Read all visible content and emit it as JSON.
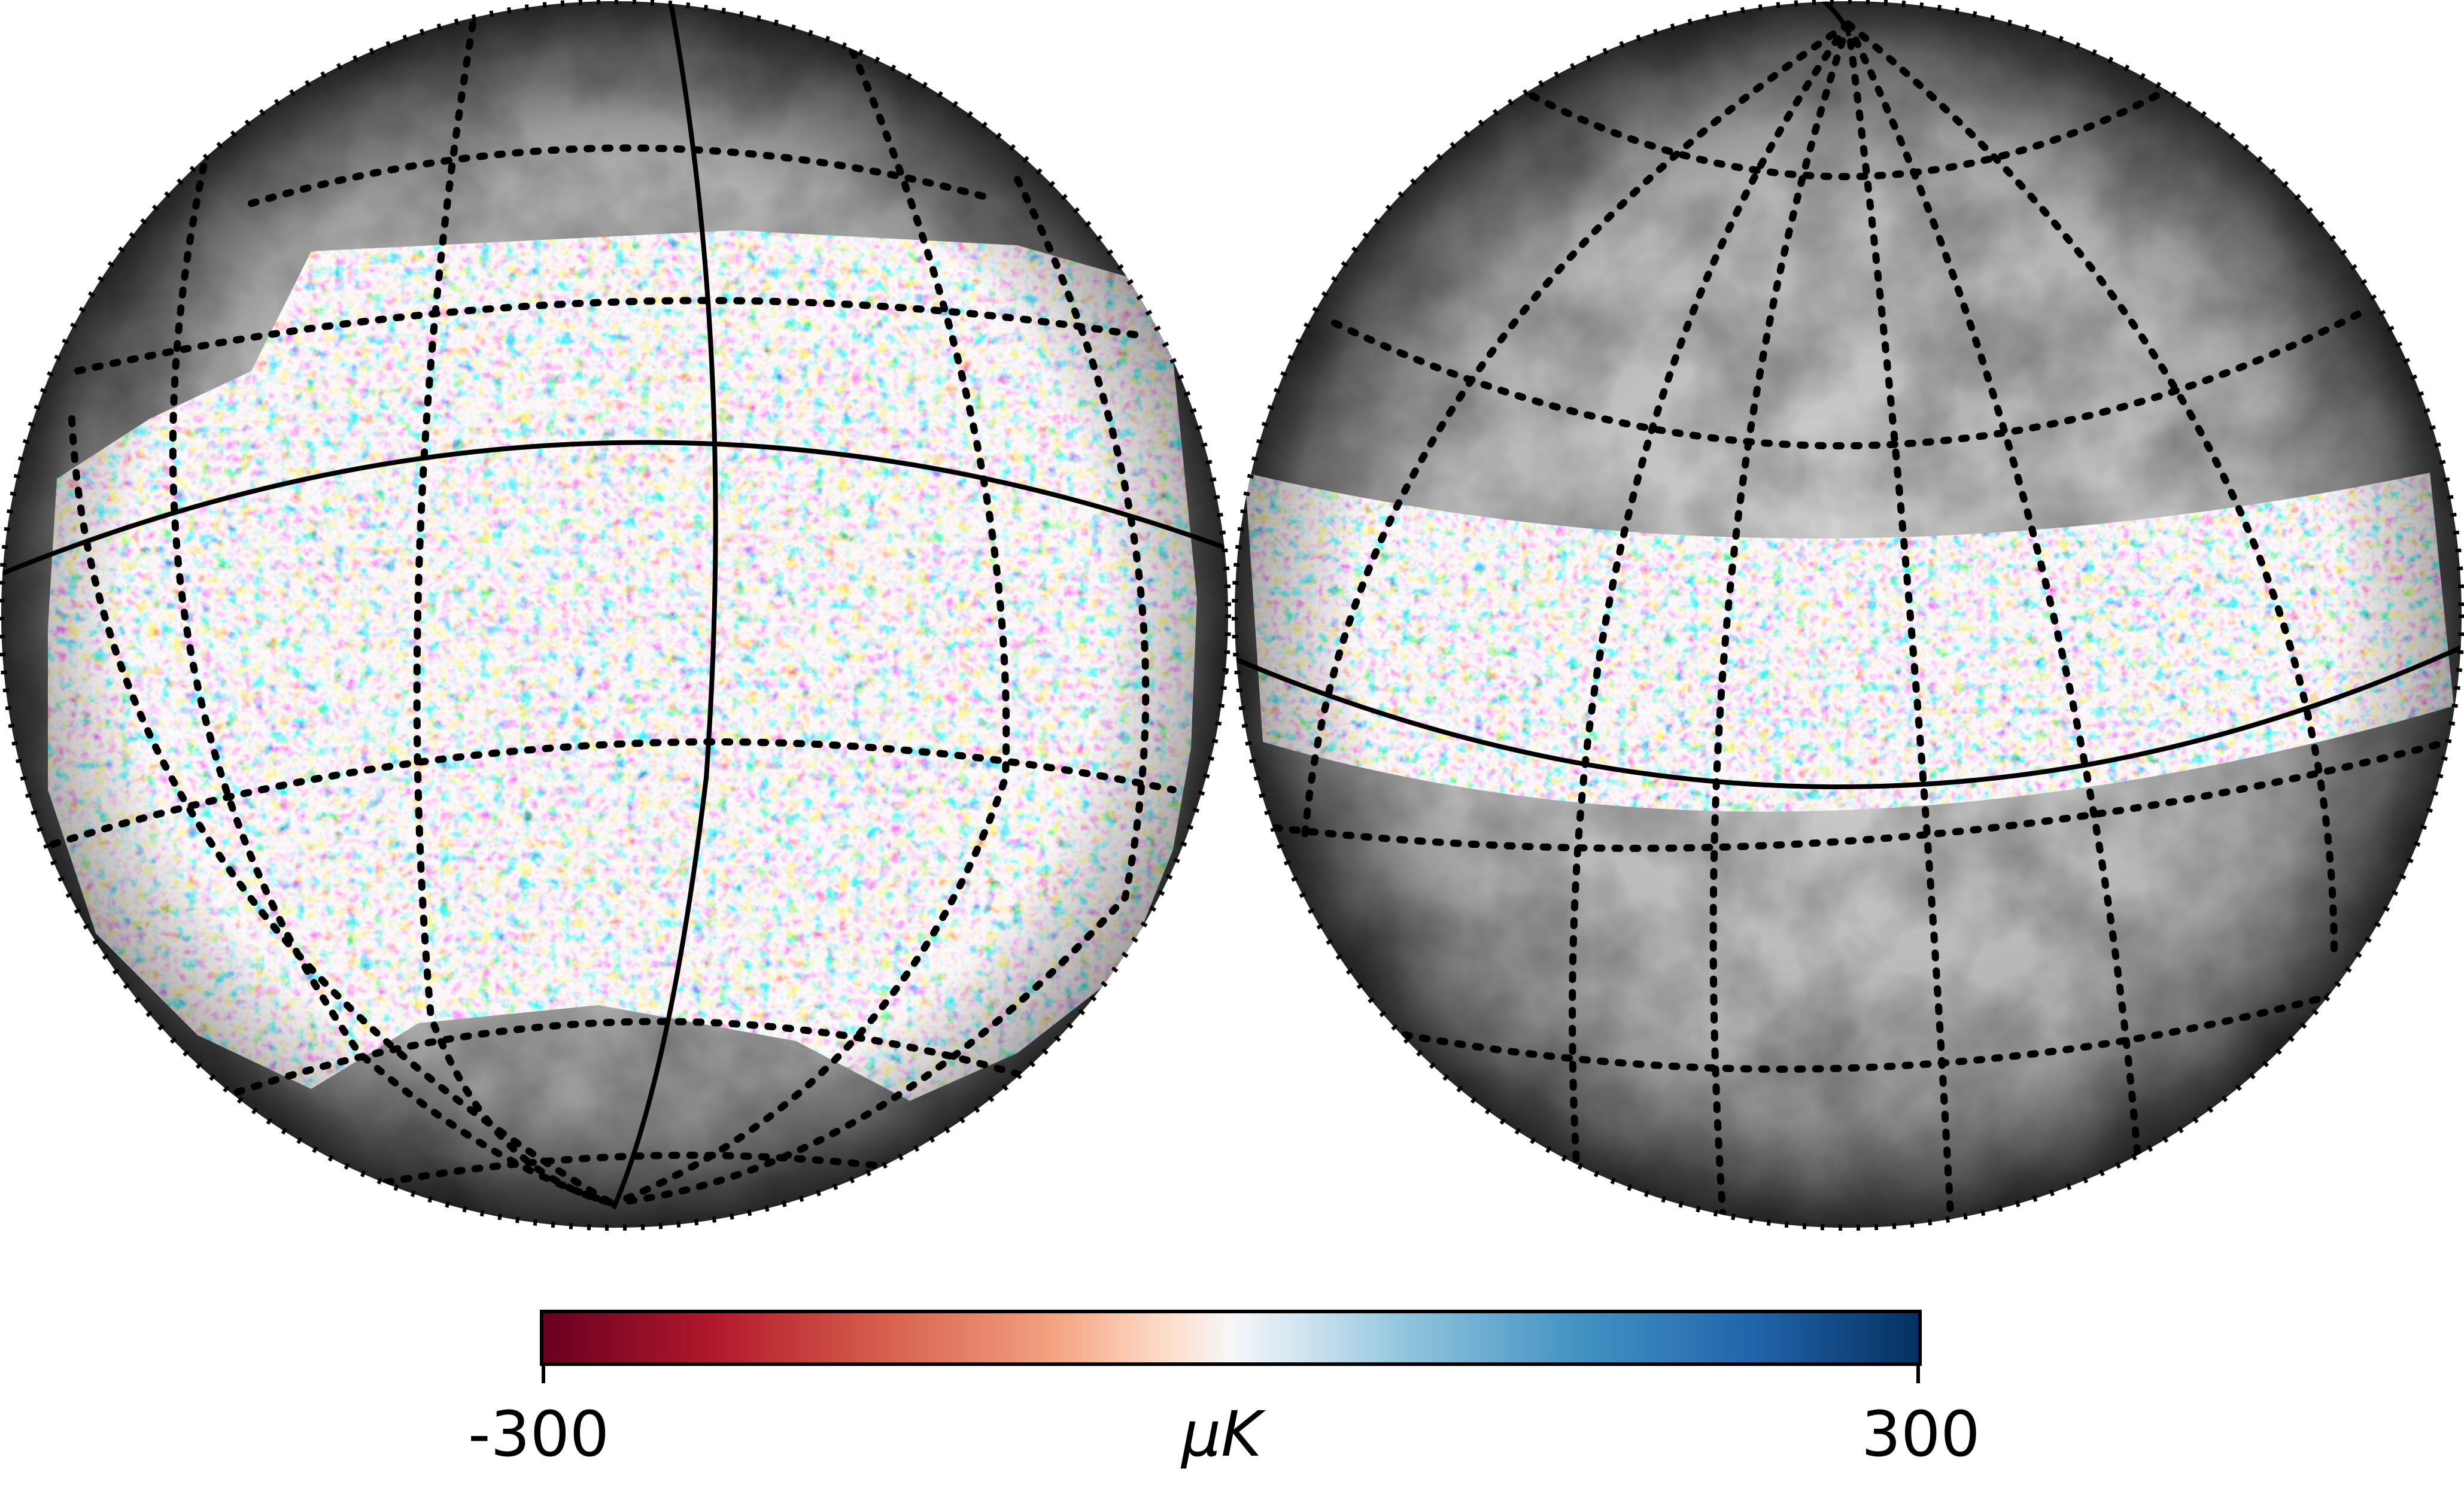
{
  "figure": {
    "panels": [
      {
        "projection": "orthographic",
        "masked_region": "band-wide-mid-latitude",
        "background": "grayscale-dust-foreground"
      },
      {
        "projection": "orthographic",
        "masked_region": "narrow-equatorial-band",
        "background": "grayscale-dust-foreground"
      }
    ],
    "graticule_style": "dotted",
    "equator_and_meridian_style": "solid"
  },
  "colorbar": {
    "min_label": "-300",
    "max_label": "300",
    "unit": "μK",
    "colormap": "RdBu",
    "min_value": -300,
    "max_value": 300,
    "colors": {
      "min": "#67001f",
      "mid": "#f7f7f7",
      "max": "#053061"
    }
  }
}
